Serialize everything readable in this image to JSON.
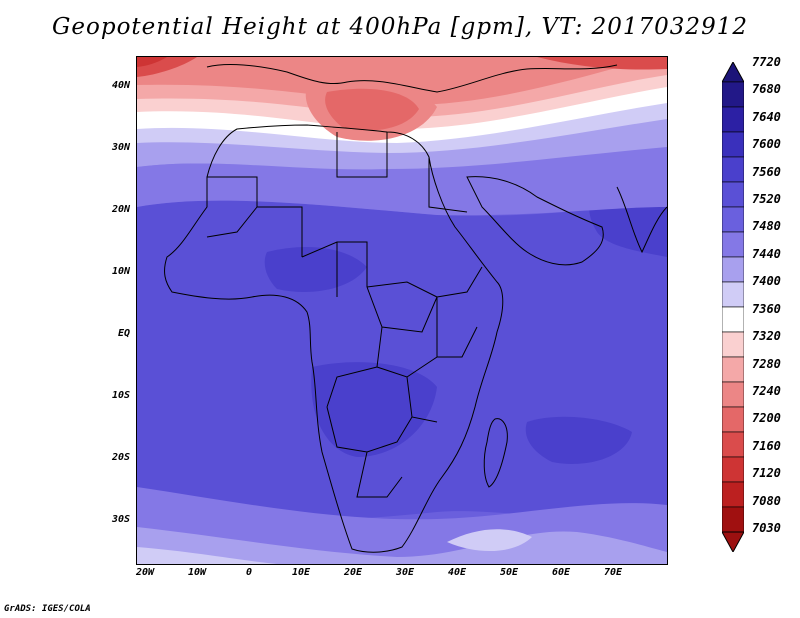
{
  "title": "Geopotential Height at 400hPa [gpm], VT: 2017032912",
  "credit": "GrADS: IGES/COLA",
  "lat_labels": [
    "40N",
    "30N",
    "20N",
    "10N",
    "EQ",
    "10S",
    "20S",
    "30S"
  ],
  "lon_labels": [
    "20W",
    "10W",
    "0",
    "10E",
    "20E",
    "30E",
    "40E",
    "50E",
    "60E",
    "70E"
  ],
  "colorbar": {
    "labels": [
      "7720",
      "7680",
      "7640",
      "7600",
      "7560",
      "7520",
      "7480",
      "7440",
      "7400",
      "7360",
      "7320",
      "7280",
      "7240",
      "7200",
      "7160",
      "7120",
      "7080",
      "7030"
    ],
    "colors": [
      "#221888",
      "#2c20a4",
      "#3a30bc",
      "#4a40cc",
      "#5a50d6",
      "#6a60de",
      "#8478e6",
      "#a8a0ee",
      "#d0ccf6",
      "#ffffff",
      "#fad0d0",
      "#f4a8a8",
      "#ec8686",
      "#e46868",
      "#da4c4c",
      "#ce3434",
      "#bc2020",
      "#a01010"
    ],
    "top_arrow_color": "#1c1478",
    "bottom_arrow_color": "#9c1010"
  }
}
